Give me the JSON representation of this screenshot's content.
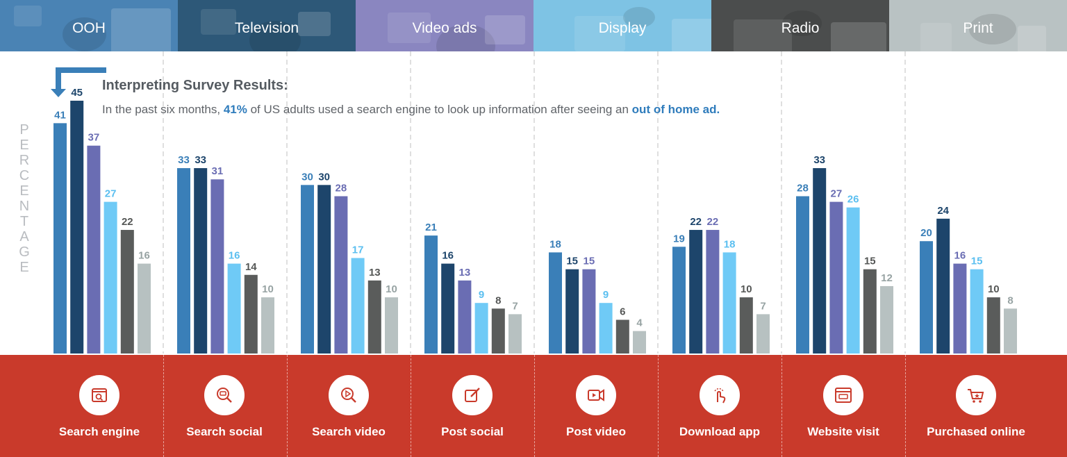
{
  "header": {
    "tabs": [
      {
        "label": "OOH",
        "color": "#4a83b4"
      },
      {
        "label": "Television",
        "color": "#2d5878"
      },
      {
        "label": "Video ads",
        "color": "#8a86c0"
      },
      {
        "label": "Display",
        "color": "#7ec3e4"
      },
      {
        "label": "Radio",
        "color": "#4b4d4d"
      },
      {
        "label": "Print",
        "color": "#b9c2c3"
      }
    ]
  },
  "note": {
    "title": "Interpreting Survey Results:",
    "body_before": "In the past six months,",
    "highlight_value": "41%",
    "body_middle": "of US adults used a search engine to look up information after seeing an",
    "highlight_media": "out of home ad."
  },
  "y_axis_label": "PERCENTAGE",
  "colors": {
    "accent_blue": "#2f7cbc",
    "footer_red": "#c93a2b",
    "divider": "#bfbfbf"
  },
  "chart_data": {
    "type": "bar",
    "ylabel": "PERCENTAGE",
    "ylim": [
      0,
      45
    ],
    "categories": [
      "Search engine",
      "Search social",
      "Search video",
      "Post social",
      "Post video",
      "Download app",
      "Website visit",
      "Purchased online"
    ],
    "category_icons": [
      "search-engine-icon",
      "search-social-icon",
      "search-video-icon",
      "post-social-icon",
      "post-video-icon",
      "download-app-icon",
      "website-visit-icon",
      "purchased-online-icon"
    ],
    "series": [
      {
        "name": "OOH",
        "color": "#3a7fb8",
        "label_color": "#3a7fb8",
        "values": [
          41,
          33,
          30,
          21,
          18,
          19,
          28,
          20
        ]
      },
      {
        "name": "Television",
        "color": "#1d456b",
        "label_color": "#1d456b",
        "values": [
          45,
          33,
          30,
          16,
          15,
          22,
          33,
          24
        ]
      },
      {
        "name": "Video ads",
        "color": "#6a6db3",
        "label_color": "#6a6db3",
        "values": [
          37,
          31,
          28,
          13,
          15,
          22,
          27,
          16
        ]
      },
      {
        "name": "Display",
        "color": "#6fcaf6",
        "label_color": "#5bbff0",
        "values": [
          27,
          16,
          17,
          9,
          9,
          18,
          26,
          15
        ]
      },
      {
        "name": "Radio",
        "color": "#5a5c5b",
        "label_color": "#555756",
        "values": [
          22,
          14,
          13,
          8,
          6,
          10,
          15,
          10
        ]
      },
      {
        "name": "Print",
        "color": "#b7c1c1",
        "label_color": "#97a3a3",
        "values": [
          16,
          10,
          10,
          7,
          4,
          7,
          12,
          8
        ]
      }
    ]
  }
}
